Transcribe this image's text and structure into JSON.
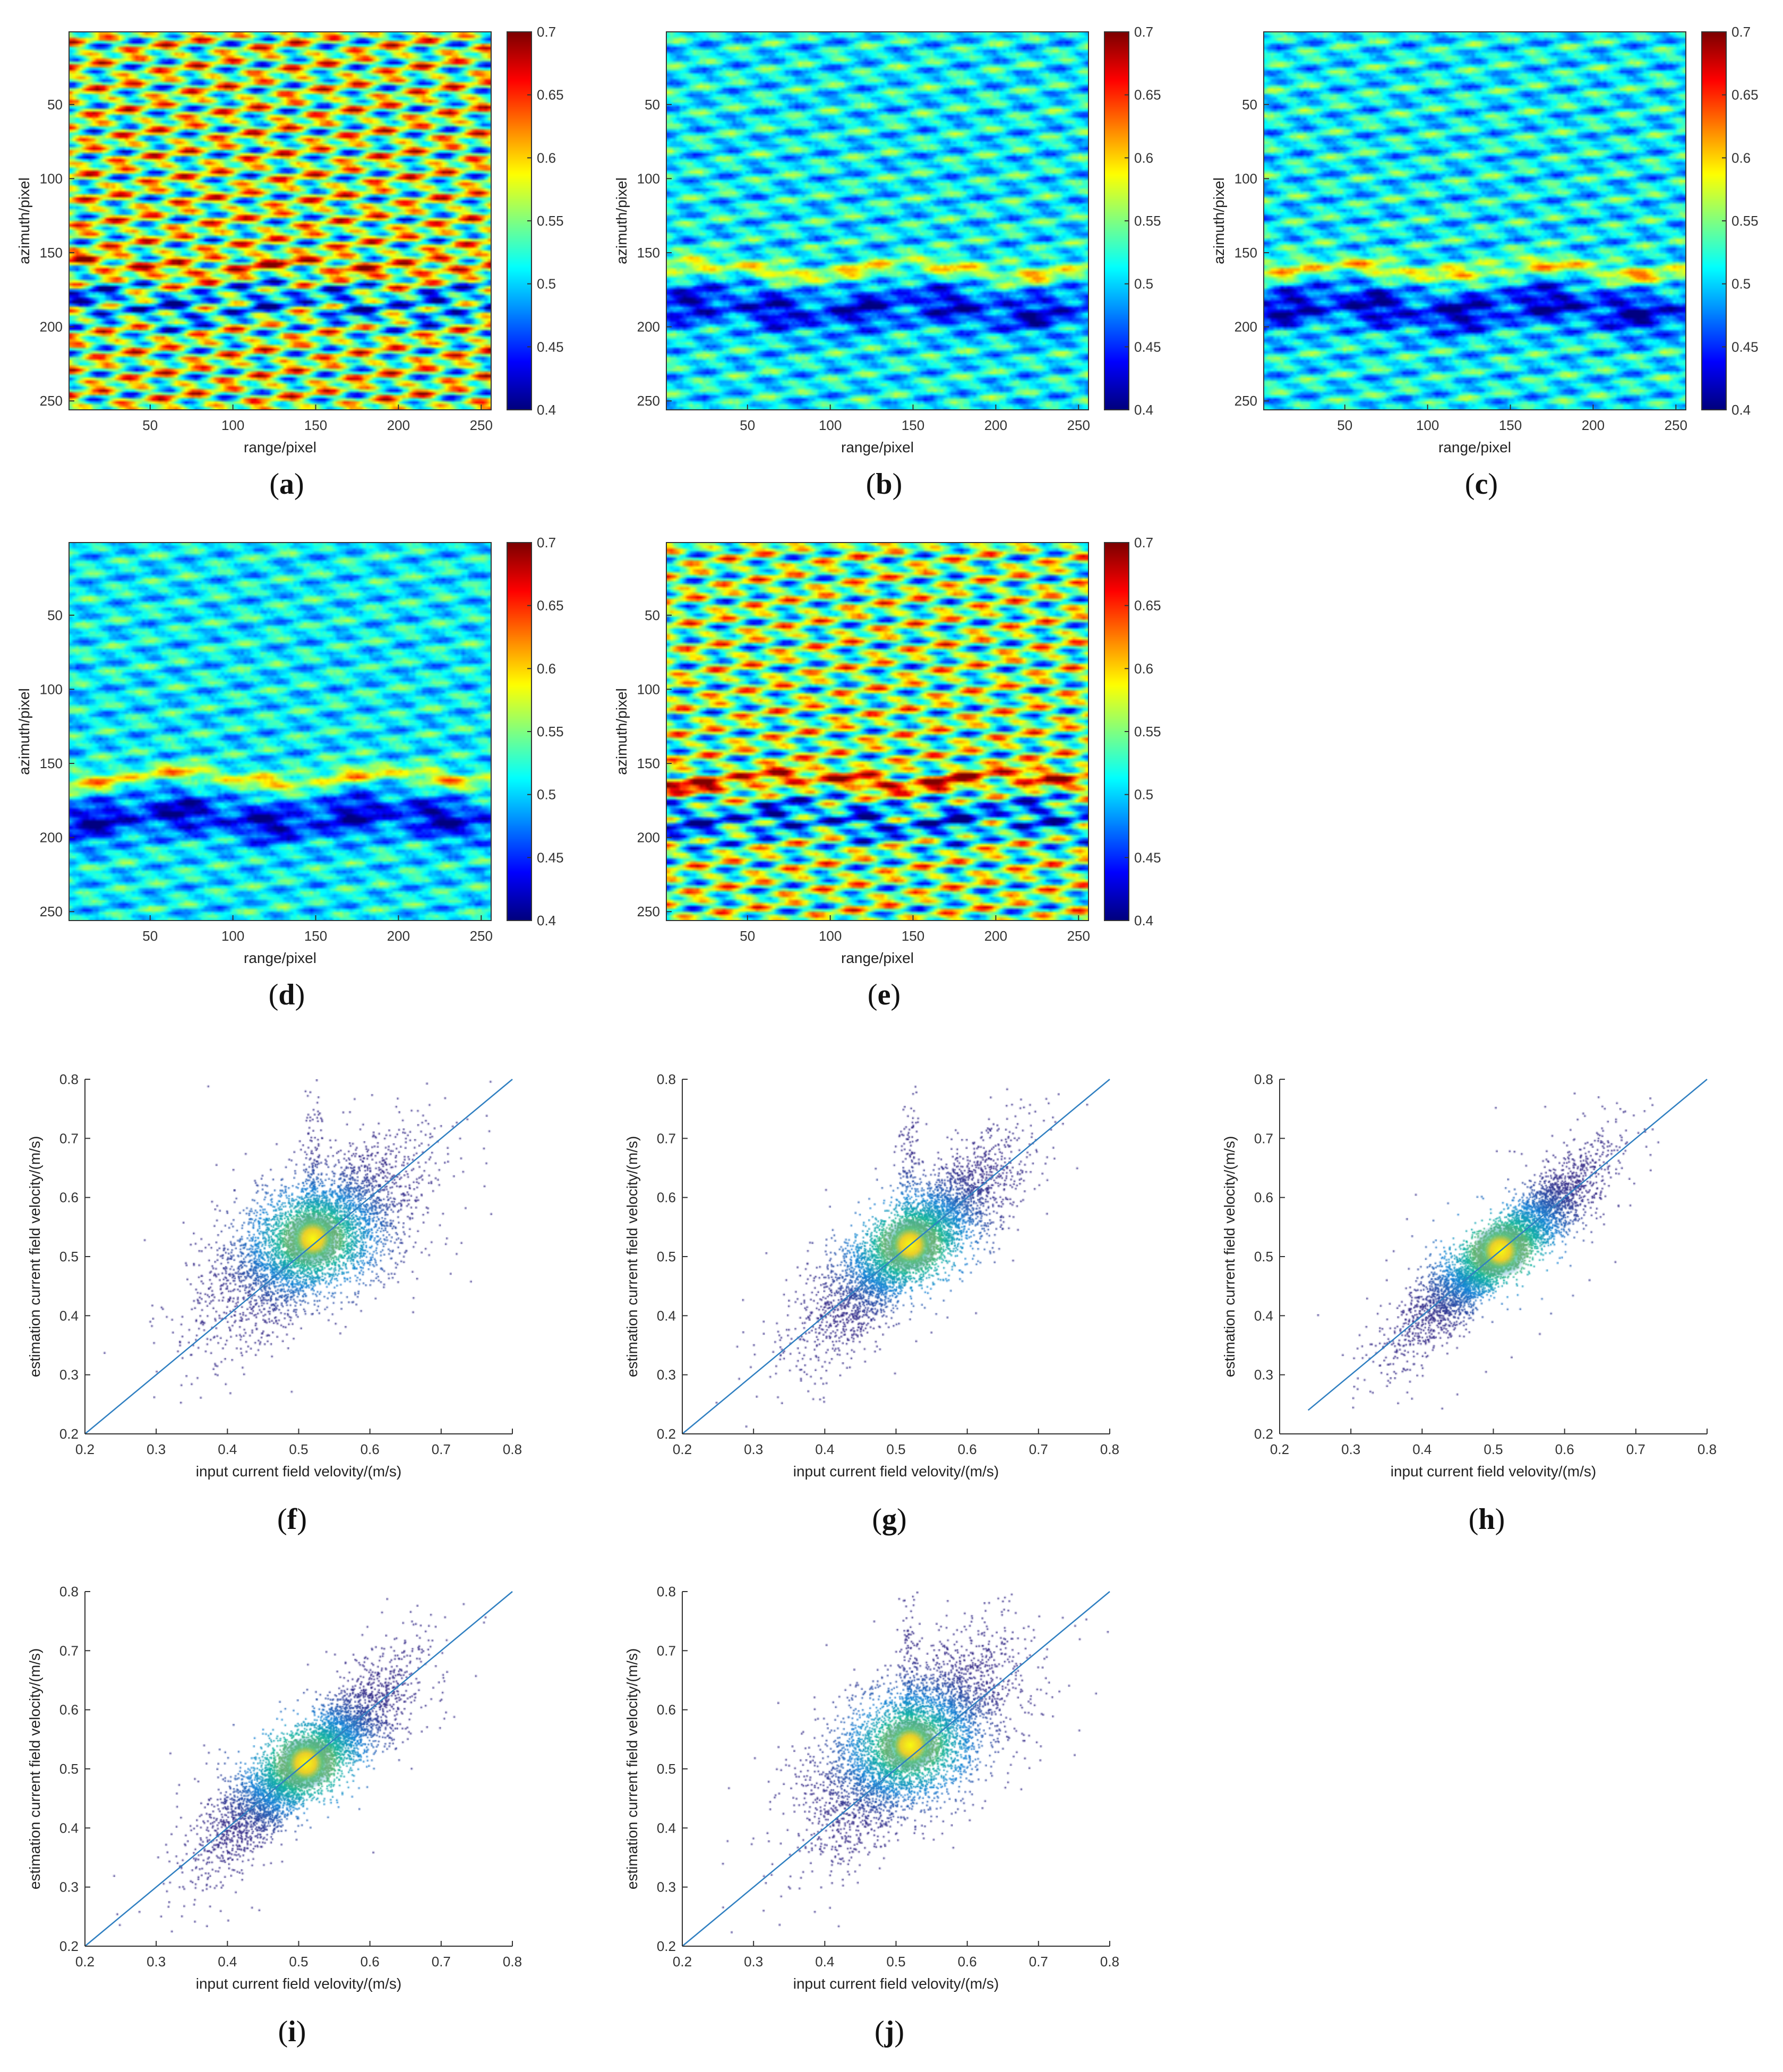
{
  "colorbar_ticks": [
    "0.4",
    "0.45",
    "0.5",
    "0.55",
    "0.6",
    "0.65",
    "0.7"
  ],
  "heatmap_axes": {
    "xlabel": "range/pixel",
    "ylabel": "azimuth/pixel",
    "xticks": [
      "50",
      "100",
      "150",
      "200",
      "250"
    ],
    "yticks": [
      "50",
      "100",
      "150",
      "200",
      "250"
    ]
  },
  "scatter_axes": {
    "xlabel": "input current field velovity/(m/s)",
    "ylabel": "estimation current field velocity/(m/s)",
    "xticks": [
      "0.2",
      "0.3",
      "0.4",
      "0.5",
      "0.6",
      "0.7",
      "0.8"
    ],
    "yticks": [
      "0.2",
      "0.3",
      "0.4",
      "0.5",
      "0.6",
      "0.7",
      "0.8"
    ]
  },
  "captions": {
    "a": {
      "open": "(",
      "letter": "a",
      "close": ")"
    },
    "b": {
      "open": "(",
      "letter": "b",
      "close": ")"
    },
    "c": {
      "open": "(",
      "letter": "c",
      "close": ")"
    },
    "d": {
      "open": "(",
      "letter": "d",
      "close": ")"
    },
    "e": {
      "open": "(",
      "letter": "e",
      "close": ")"
    },
    "f": {
      "open": "(",
      "letter": "f",
      "close": ")"
    },
    "g": {
      "open": "(",
      "letter": "g",
      "close": ")"
    },
    "h": {
      "open": "(",
      "letter": "h",
      "close": ")"
    },
    "i": {
      "open": "(",
      "letter": "i",
      "close": ")"
    },
    "j": {
      "open": "(",
      "letter": "j",
      "close": ")"
    }
  },
  "chart_data": [
    {
      "panel": "a",
      "type": "heatmap",
      "xlabel": "range/pixel",
      "ylabel": "azimuth/pixel",
      "xlim": [
        1,
        256
      ],
      "ylim": [
        1,
        256
      ],
      "clim": [
        0.4,
        0.7
      ],
      "colormap": "jet",
      "features": {
        "base": 0.56,
        "bands": [
          {
            "azimuth": 160,
            "value": 0.63
          },
          {
            "azimuth": 185,
            "value": 0.47
          }
        ],
        "streak_amplitude": 0.09
      }
    },
    {
      "panel": "b",
      "type": "heatmap",
      "xlabel": "range/pixel",
      "ylabel": "azimuth/pixel",
      "xlim": [
        1,
        256
      ],
      "ylim": [
        1,
        256
      ],
      "clim": [
        0.4,
        0.7
      ],
      "colormap": "jet",
      "features": {
        "base": 0.51,
        "bands": [
          {
            "azimuth": 162,
            "value": 0.6
          },
          {
            "azimuth": 188,
            "value": 0.42
          }
        ],
        "streak_amplitude": 0.04
      }
    },
    {
      "panel": "c",
      "type": "heatmap",
      "xlabel": "range/pixel",
      "ylabel": "azimuth/pixel",
      "xlim": [
        1,
        256
      ],
      "ylim": [
        1,
        256
      ],
      "clim": [
        0.4,
        0.7
      ],
      "colormap": "jet",
      "features": {
        "base": 0.51,
        "bands": [
          {
            "azimuth": 162,
            "value": 0.61
          },
          {
            "azimuth": 188,
            "value": 0.41
          }
        ],
        "streak_amplitude": 0.04
      }
    },
    {
      "panel": "d",
      "type": "heatmap",
      "xlabel": "range/pixel",
      "ylabel": "azimuth/pixel",
      "xlim": [
        1,
        256
      ],
      "ylim": [
        1,
        256
      ],
      "clim": [
        0.4,
        0.7
      ],
      "colormap": "jet",
      "features": {
        "base": 0.51,
        "bands": [
          {
            "azimuth": 160,
            "value": 0.61
          },
          {
            "azimuth": 187,
            "value": 0.41
          }
        ],
        "streak_amplitude": 0.035
      }
    },
    {
      "panel": "e",
      "type": "heatmap",
      "xlabel": "range/pixel",
      "ylabel": "azimuth/pixel",
      "xlim": [
        1,
        256
      ],
      "ylim": [
        1,
        256
      ],
      "clim": [
        0.4,
        0.7
      ],
      "colormap": "jet",
      "features": {
        "base": 0.55,
        "bands": [
          {
            "azimuth": 162,
            "value": 0.68
          },
          {
            "azimuth": 188,
            "value": 0.45
          }
        ],
        "streak_amplitude": 0.08
      }
    },
    {
      "panel": "f",
      "type": "scatter",
      "xlabel": "input current field velovity/(m/s)",
      "ylabel": "estimation current field velocity/(m/s)",
      "xlim": [
        0.2,
        0.8
      ],
      "ylim": [
        0.2,
        0.8
      ],
      "reference_line": [
        [
          0.2,
          0.2
        ],
        [
          0.8,
          0.8
        ]
      ],
      "density_peak": [
        0.52,
        0.53
      ],
      "slope": 0.6,
      "spread": 0.045,
      "spike": true
    },
    {
      "panel": "g",
      "type": "scatter",
      "xlabel": "input current field velovity/(m/s)",
      "ylabel": "estimation current field velocity/(m/s)",
      "xlim": [
        0.2,
        0.8
      ],
      "ylim": [
        0.2,
        0.8
      ],
      "reference_line": [
        [
          0.2,
          0.2
        ],
        [
          0.8,
          0.8
        ]
      ],
      "density_peak": [
        0.52,
        0.52
      ],
      "slope": 0.9,
      "spread": 0.035,
      "spike": true
    },
    {
      "panel": "h",
      "type": "scatter",
      "xlabel": "input current field velovity/(m/s)",
      "ylabel": "estimation current field velocity/(m/s)",
      "xlim": [
        0.2,
        0.8
      ],
      "ylim": [
        0.2,
        0.8
      ],
      "reference_line": [
        [
          0.24,
          0.24
        ],
        [
          0.8,
          0.8
        ]
      ],
      "density_peak": [
        0.51,
        0.51
      ],
      "slope": 0.98,
      "spread": 0.025,
      "spike": false
    },
    {
      "panel": "i",
      "type": "scatter",
      "xlabel": "input current field velovity/(m/s)",
      "ylabel": "estimation current field velocity/(m/s)",
      "xlim": [
        0.2,
        0.8
      ],
      "ylim": [
        0.2,
        0.8
      ],
      "reference_line": [
        [
          0.2,
          0.2
        ],
        [
          0.8,
          0.8
        ]
      ],
      "density_peak": [
        0.51,
        0.51
      ],
      "slope": 0.95,
      "spread": 0.03,
      "spike": false
    },
    {
      "panel": "j",
      "type": "scatter",
      "xlabel": "input current field velovity/(m/s)",
      "ylabel": "estimation current field velocity/(m/s)",
      "xlim": [
        0.2,
        0.8
      ],
      "ylim": [
        0.2,
        0.8
      ],
      "reference_line": [
        [
          0.2,
          0.2
        ],
        [
          0.8,
          0.8
        ]
      ],
      "density_peak": [
        0.52,
        0.54
      ],
      "slope": 0.75,
      "spread": 0.05,
      "spike": true
    }
  ]
}
